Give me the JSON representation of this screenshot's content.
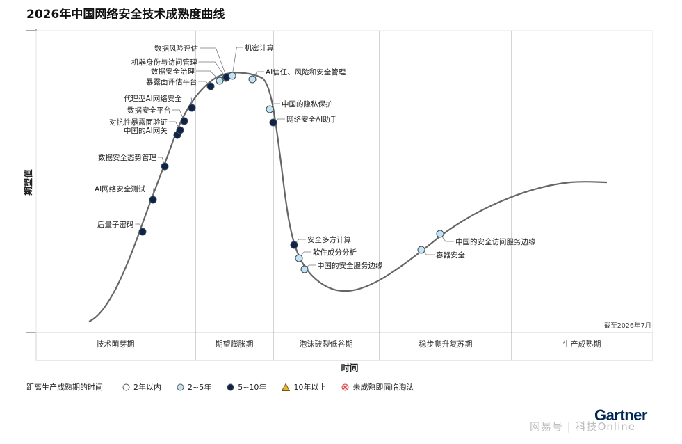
{
  "page_title": "2026年中国网络安全技术成熟度曲线",
  "chart_data": {
    "type": "hype_cycle",
    "title": "2026年中国网络安全技术成熟度曲线",
    "ylabel": "期望值",
    "xlabel": "时间",
    "as_of": "截至2026年7月",
    "phases": [
      "技术萌芽期",
      "期望膨胀期",
      "泡沫破裂低谷期",
      "稳步爬升复苏期",
      "生产成熟期"
    ],
    "legend_title": "距离生产成熟期的时间",
    "legend": [
      {
        "label": "2年以内",
        "key": "lt2",
        "color": "#ffffff"
      },
      {
        "label": "2~5年",
        "key": "y2_5",
        "color": "#c4e3f1"
      },
      {
        "label": "5~10年",
        "key": "y5_10",
        "color": "#0f2348"
      },
      {
        "label": "10年以上",
        "key": "gt10",
        "color": "#e8b33a"
      },
      {
        "label": "未成熟即面临淘汰",
        "key": "obsolete",
        "color": "#d23c3c"
      }
    ],
    "technologies": [
      {
        "name": "后量子密码",
        "category": "y5_10"
      },
      {
        "name": "AI网络安全测试",
        "category": "y5_10"
      },
      {
        "name": "数据安全态势管理",
        "category": "y5_10"
      },
      {
        "name": "中国的AI网关",
        "category": "y5_10"
      },
      {
        "name": "对抗性暴露面验证",
        "category": "y5_10"
      },
      {
        "name": "数据安全平台",
        "category": "y5_10"
      },
      {
        "name": "代理型AI网络安全",
        "category": "y5_10"
      },
      {
        "name": "暴露面评估平台",
        "category": "y5_10"
      },
      {
        "name": "数据安全治理",
        "category": "y2_5"
      },
      {
        "name": "机器身份与访问管理",
        "category": "y2_5"
      },
      {
        "name": "数据风险评估",
        "category": "y5_10"
      },
      {
        "name": "机密计算",
        "category": "y2_5"
      },
      {
        "name": "AI信任、风险和安全管理",
        "category": "y2_5"
      },
      {
        "name": "中国的隐私保护",
        "category": "y2_5"
      },
      {
        "name": "网络安全AI助手",
        "category": "y5_10"
      },
      {
        "name": "安全多方计算",
        "category": "y5_10"
      },
      {
        "name": "软件成分分析",
        "category": "y2_5"
      },
      {
        "name": "中国的安全服务边缘",
        "category": "y2_5"
      },
      {
        "name": "容器安全",
        "category": "y2_5"
      },
      {
        "name": "中国的安全访问服务边缘",
        "category": "y2_5"
      }
    ]
  },
  "footer": {
    "brand": "Gartner",
    "watermark": "网易号 | 科技Online"
  }
}
